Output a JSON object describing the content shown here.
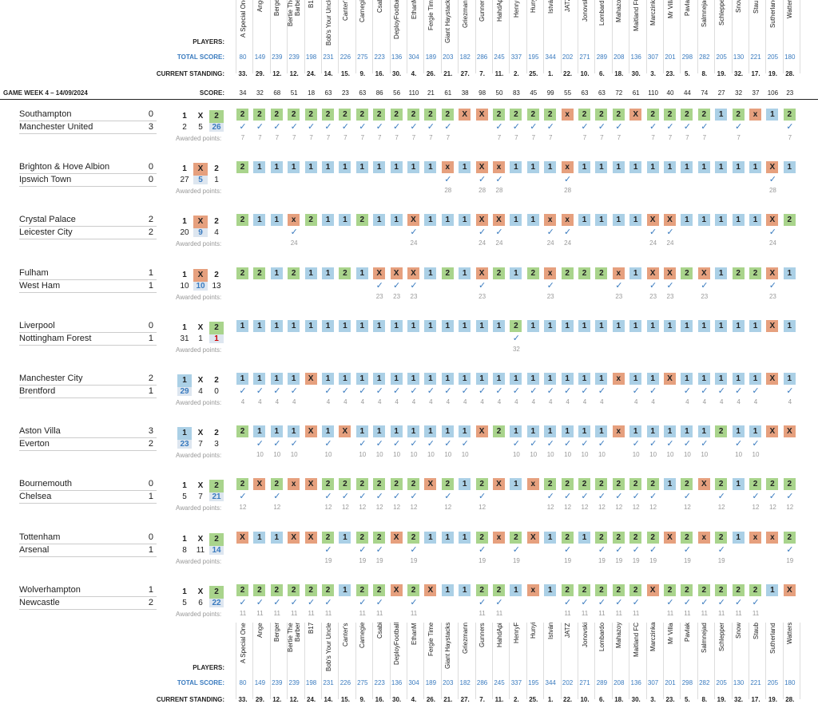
{
  "header": {
    "players_label": "PLAYERS:",
    "total_label": "TOTAL SCORE:",
    "standing_label": "CURRENT STANDING:",
    "score_label": "SCORE:",
    "game_week": "GAME WEEK 4 – 14/09/2024",
    "awarded_label": "Awarded points:"
  },
  "players": [
    {
      "name": "A Special One",
      "total": "80",
      "standing": "33.",
      "score": "34"
    },
    {
      "name": "Ange",
      "total": "149",
      "standing": "29.",
      "score": "32"
    },
    {
      "name": "Berger",
      "total": "239",
      "standing": "12.",
      "score": "68"
    },
    {
      "name": "Bertie The Barber",
      "total": "239",
      "standing": "12.",
      "score": "51"
    },
    {
      "name": "B17",
      "total": "198",
      "standing": "24.",
      "score": "18"
    },
    {
      "name": "Bob's Your Uncle",
      "total": "231",
      "standing": "14.",
      "score": "63"
    },
    {
      "name": "Canter's",
      "total": "226",
      "standing": "15.",
      "score": "23"
    },
    {
      "name": "Carnegie",
      "total": "275",
      "standing": "9.",
      "score": "63"
    },
    {
      "name": "Csabi",
      "total": "223",
      "standing": "16.",
      "score": "86"
    },
    {
      "name": "DeployFootball",
      "total": "136",
      "standing": "30.",
      "score": "56"
    },
    {
      "name": "EthanM",
      "total": "304",
      "standing": "4.",
      "score": "110"
    },
    {
      "name": "Fergie Time",
      "total": "189",
      "standing": "26.",
      "score": "21"
    },
    {
      "name": "Giant Haystacks",
      "total": "203",
      "standing": "21.",
      "score": "61"
    },
    {
      "name": "Griezmann",
      "total": "182",
      "standing": "27.",
      "score": "38"
    },
    {
      "name": "Gunners",
      "total": "286",
      "standing": "7.",
      "score": "98"
    },
    {
      "name": "HahdApi",
      "total": "245",
      "standing": "11.",
      "score": "50"
    },
    {
      "name": "HenryF",
      "total": "337",
      "standing": "2.",
      "score": "83"
    },
    {
      "name": "Hunyi",
      "total": "195",
      "standing": "25.",
      "score": "45"
    },
    {
      "name": "István",
      "total": "344",
      "standing": "1.",
      "score": "99"
    },
    {
      "name": "JATZ",
      "total": "202",
      "standing": "22.",
      "score": "55"
    },
    {
      "name": "Jonovski",
      "total": "271",
      "standing": "10.",
      "score": "63"
    },
    {
      "name": "Lombardo",
      "total": "289",
      "standing": "6.",
      "score": "63"
    },
    {
      "name": "Mahazoy",
      "total": "208",
      "standing": "18.",
      "score": "72"
    },
    {
      "name": "Maitland FC",
      "total": "136",
      "standing": "30.",
      "score": "61"
    },
    {
      "name": "Marczinka",
      "total": "307",
      "standing": "3.",
      "score": "110"
    },
    {
      "name": "Mr Villa",
      "total": "201",
      "standing": "23.",
      "score": "40"
    },
    {
      "name": "Pavlak",
      "total": "298",
      "standing": "5.",
      "score": "44"
    },
    {
      "name": "Salmnejad",
      "total": "282",
      "standing": "8.",
      "score": "74"
    },
    {
      "name": "Schlepper",
      "total": "205",
      "standing": "19.",
      "score": "27"
    },
    {
      "name": "Snow",
      "total": "130",
      "standing": "32.",
      "score": "32"
    },
    {
      "name": "Staub",
      "total": "221",
      "standing": "17.",
      "score": "37"
    },
    {
      "name": "Sutherland",
      "total": "205",
      "standing": "19.",
      "score": "106"
    },
    {
      "name": "Watters",
      "total": "180",
      "standing": "28.",
      "score": "23"
    }
  ],
  "matches": [
    {
      "home": "Southampton",
      "away": "Manchester United",
      "hg": "0",
      "ag": "3",
      "c1": "2",
      "cx": "5",
      "c2": "26",
      "result": "2",
      "points": "7",
      "red": false,
      "picks": "2,2,2,2,2,2,2,2,2,2,2,2,2,X,X,2,2,2,2,x,2,2,2,X,2,2,2,2,1,2,x,1,2"
    },
    {
      "home": "Brighton & Hove Albion",
      "away": "Ipswich Town",
      "hg": "0",
      "ag": "0",
      "c1": "27",
      "cx": "5",
      "c2": "1",
      "result": "X",
      "points": "28",
      "red": false,
      "picks": "2,1,1,1,1,1,1,1,1,1,1,1,x,1,X,x,1,1,1,x,1,1,1,1,1,1,1,1,1,1,1,X,1"
    },
    {
      "home": "Crystal Palace",
      "away": "Leicester City",
      "hg": "2",
      "ag": "2",
      "c1": "20",
      "cx": "9",
      "c2": "4",
      "result": "X",
      "points": "24",
      "red": false,
      "picks": "2,1,1,x,2,1,1,2,1,1,X,1,1,1,X,X,1,1,x,x,1,1,1,1,X,X,1,1,1,1,1,X,2"
    },
    {
      "home": "Fulham",
      "away": "West Ham",
      "hg": "1",
      "ag": "1",
      "c1": "10",
      "cx": "10",
      "c2": "13",
      "result": "X",
      "points": "23",
      "red": false,
      "picks": "2,2,1,2,1,1,2,1,X,X,X,1,2,1,X,2,1,2,x,2,2,2,x,1,X,X,2,X,1,2,2,X,1"
    },
    {
      "home": "Liverpool",
      "away": "Nottingham Forest",
      "hg": "0",
      "ag": "1",
      "c1": "31",
      "cx": "1",
      "c2": "1",
      "result": "2",
      "points": "32",
      "red": true,
      "picks": "1,1,1,1,1,1,1,1,1,1,1,1,1,1,1,1,2,1,1,1,1,1,1,1,1,1,1,1,1,1,1,X,1"
    },
    {
      "home": "Manchester City",
      "away": "Brentford",
      "hg": "2",
      "ag": "1",
      "c1": "29",
      "cx": "4",
      "c2": "0",
      "result": "1",
      "points": "4",
      "red": false,
      "picks": "1,1,1,1,X,1,1,1,1,1,1,1,1,1,1,1,1,1,1,1,1,1,x,1,1,X,1,1,1,1,1,X,1"
    },
    {
      "home": "Aston Villa",
      "away": "Everton",
      "hg": "3",
      "ag": "2",
      "c1": "23",
      "cx": "7",
      "c2": "3",
      "result": "1",
      "points": "10",
      "red": false,
      "picks": "2,1,1,1,X,1,X,1,1,1,1,1,1,1,X,2,1,1,1,1,1,1,x,1,1,1,1,1,2,1,1,X,X"
    },
    {
      "home": "Bournemouth",
      "away": "Chelsea",
      "hg": "0",
      "ag": "1",
      "c1": "5",
      "cx": "7",
      "c2": "21",
      "result": "2",
      "points": "12",
      "red": false,
      "picks": "2,X,2,x,X,2,2,2,2,2,2,X,2,1,2,X,1,x,2,2,2,2,2,2,2,1,2,X,2,1,2,2,2"
    },
    {
      "home": "Tottenham",
      "away": "Arsenal",
      "hg": "0",
      "ag": "1",
      "c1": "8",
      "cx": "11",
      "c2": "14",
      "result": "2",
      "points": "19",
      "red": false,
      "picks": "X,1,1,X,X,2,1,2,2,X,2,1,1,1,2,x,2,X,1,2,1,2,2,2,2,X,2,x,2,1,x,x,2"
    },
    {
      "home": "Wolverhampton",
      "away": "Newcastle",
      "hg": "1",
      "ag": "2",
      "c1": "5",
      "cx": "6",
      "c2": "22",
      "result": "2",
      "points": "11",
      "red": false,
      "picks": "2,2,2,2,2,2,1,2,2,X,2,X,1,1,2,2,1,x,1,2,2,2,2,2,X,2,2,2,2,2,2,1,X"
    }
  ]
}
